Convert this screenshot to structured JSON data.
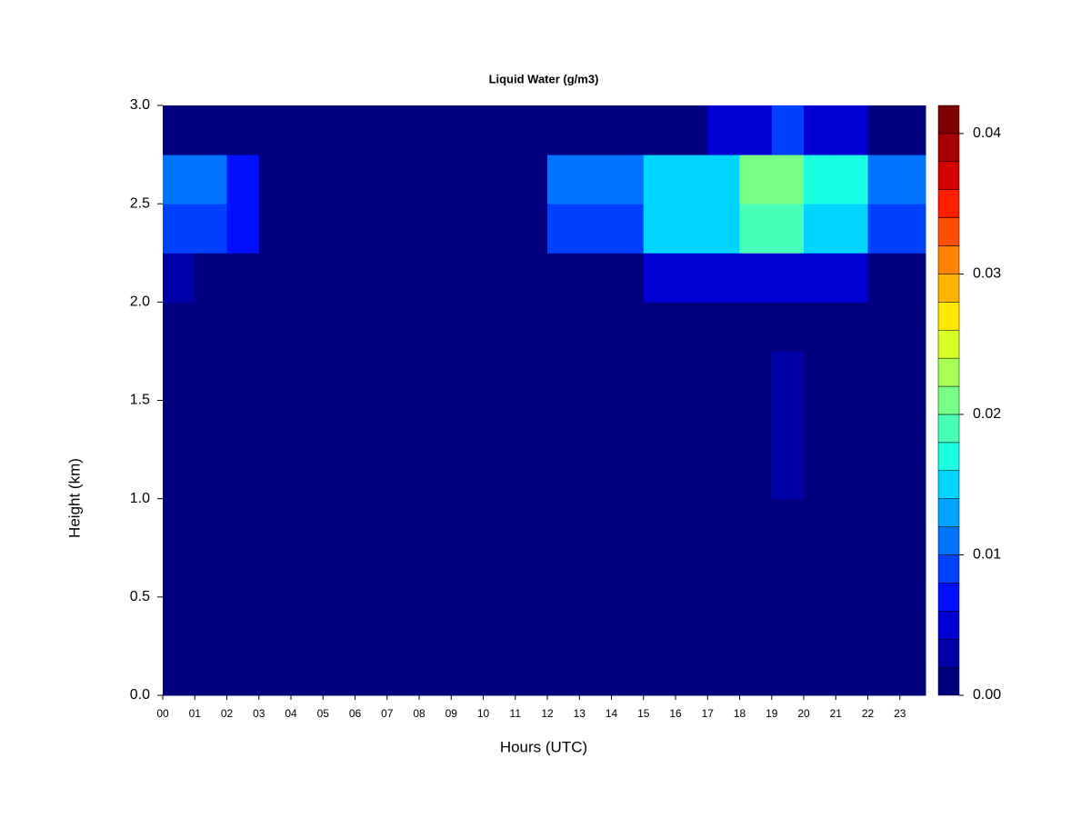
{
  "chart_data": {
    "type": "heatmap",
    "title": "Liquid Water (g/m3)",
    "x_label": "Hours (UTC)",
    "y_label": "Height (km)",
    "xlim": [
      0,
      23.8
    ],
    "ylim": [
      0,
      3
    ],
    "x_edges": [
      0,
      1,
      2,
      3,
      4,
      5,
      6,
      7,
      8,
      9,
      10,
      11,
      12,
      13,
      14,
      15,
      16,
      17,
      18,
      19,
      20,
      21,
      22,
      23,
      23.8
    ],
    "y_edges": [
      0,
      0.25,
      0.5,
      0.75,
      1,
      1.25,
      1.5,
      1.75,
      2,
      2.25,
      2.5,
      2.75,
      3
    ],
    "xticks": [
      {
        "value": 0,
        "label": "00"
      },
      {
        "value": 1,
        "label": "01"
      },
      {
        "value": 2,
        "label": "02"
      },
      {
        "value": 3,
        "label": "03"
      },
      {
        "value": 4,
        "label": "04"
      },
      {
        "value": 5,
        "label": "05"
      },
      {
        "value": 6,
        "label": "06"
      },
      {
        "value": 7,
        "label": "07"
      },
      {
        "value": 8,
        "label": "08"
      },
      {
        "value": 9,
        "label": "09"
      },
      10,
      11,
      12,
      13,
      14,
      15,
      16,
      17,
      18,
      19,
      20,
      21,
      22,
      23
    ],
    "yticks": [
      {
        "value": 0,
        "label": "0.0"
      },
      0.5,
      {
        "value": 1,
        "label": "1.0"
      },
      1.5,
      {
        "value": 2,
        "label": "2.0"
      },
      2.5,
      {
        "value": 3,
        "label": "3.0"
      }
    ],
    "z": [
      [
        0,
        0,
        0,
        0,
        0,
        0,
        0,
        0,
        0,
        0,
        0,
        0,
        0,
        0,
        0,
        0,
        0,
        0,
        0,
        0,
        0,
        0,
        0,
        0
      ],
      [
        0,
        0,
        0,
        0,
        0,
        0,
        0,
        0,
        0,
        0,
        0,
        0,
        0,
        0,
        0,
        0,
        0,
        0,
        0,
        0,
        0,
        0,
        0,
        0
      ],
      [
        0,
        0,
        0,
        0,
        0,
        0,
        0,
        0,
        0,
        0,
        0,
        0,
        0,
        0,
        0,
        0,
        0,
        0,
        0,
        0,
        0,
        0,
        0,
        0
      ],
      [
        0,
        0,
        0,
        0,
        0,
        0,
        0,
        0,
        0,
        0,
        0,
        0,
        0,
        0,
        0,
        0,
        0,
        0,
        0,
        0,
        0,
        0,
        0,
        0
      ],
      [
        0,
        0,
        0,
        0,
        0,
        0,
        0,
        0,
        0,
        0,
        0,
        0,
        0,
        0,
        0,
        0,
        0,
        0,
        0,
        0.003,
        0,
        0,
        0,
        0
      ],
      [
        0,
        0,
        0,
        0,
        0,
        0,
        0,
        0,
        0,
        0,
        0,
        0,
        0,
        0,
        0,
        0,
        0,
        0,
        0,
        0.003,
        0,
        0,
        0,
        0
      ],
      [
        0,
        0,
        0,
        0,
        0,
        0,
        0,
        0,
        0,
        0,
        0,
        0,
        0,
        0,
        0,
        0,
        0,
        0,
        0,
        0.003,
        0,
        0,
        0,
        0
      ],
      [
        0,
        0,
        0,
        0,
        0,
        0,
        0,
        0,
        0,
        0,
        0,
        0,
        0,
        0,
        0,
        0,
        0,
        0,
        0,
        0,
        0,
        0,
        0,
        0
      ],
      [
        0.002,
        0,
        0,
        0,
        0,
        0,
        0,
        0,
        0,
        0,
        0,
        0,
        0,
        0,
        0,
        0.004,
        0.004,
        0.004,
        0.004,
        0.004,
        0.004,
        0.004,
        0,
        0
      ],
      [
        0.008,
        0.008,
        0.006,
        0,
        0,
        0,
        0,
        0,
        0,
        0,
        0,
        0,
        0.008,
        0.008,
        0.008,
        0.014,
        0.014,
        0.014,
        0.018,
        0.018,
        0.014,
        0.014,
        0.008,
        0.008
      ],
      [
        0.01,
        0.01,
        0.006,
        0,
        0,
        0,
        0,
        0,
        0,
        0,
        0,
        0,
        0.01,
        0.01,
        0.01,
        0.014,
        0.014,
        0.014,
        0.02,
        0.02,
        0.016,
        0.016,
        0.01,
        0.01
      ],
      [
        0,
        0,
        0,
        0,
        0,
        0,
        0,
        0,
        0,
        0,
        0,
        0,
        0,
        0,
        0,
        0,
        0,
        0.004,
        0.004,
        0.008,
        0.004,
        0.004,
        0,
        0
      ]
    ],
    "levels": [
      0,
      0.002,
      0.004,
      0.006,
      0.008,
      0.01,
      0.012,
      0.014,
      0.016,
      0.018,
      0.02,
      0.022,
      0.024,
      0.026,
      0.028,
      0.03,
      0.032,
      0.034,
      0.036,
      0.038,
      0.04,
      0.042
    ],
    "colors": [
      "#00007f",
      "#0000a8",
      "#0000d4",
      "#0010ff",
      "#0040ff",
      "#0074ff",
      "#00a4ff",
      "#00d4ff",
      "#1affe4",
      "#48ffb8",
      "#78ff86",
      "#a8ff56",
      "#d8ff26",
      "#ffe800",
      "#ffb400",
      "#ff8200",
      "#ff4e00",
      "#ff1e00",
      "#d40000",
      "#a80000",
      "#7f0000"
    ],
    "colorbar_ticks": [
      {
        "value": 0,
        "label": "0.00"
      },
      {
        "value": 0.01,
        "label": "0.01"
      },
      {
        "value": 0.02,
        "label": "0.02"
      },
      {
        "value": 0.03,
        "label": "0.03"
      },
      {
        "value": 0.04,
        "label": "0.04"
      }
    ]
  }
}
